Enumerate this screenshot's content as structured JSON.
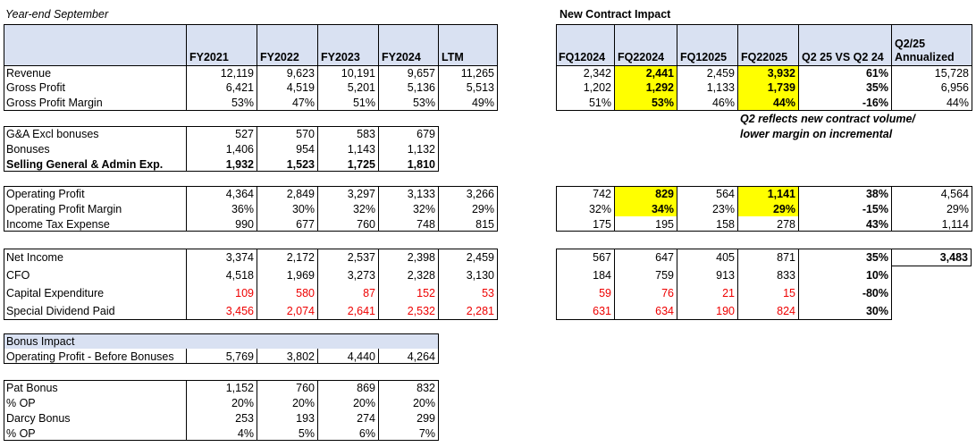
{
  "left": {
    "caption": "Year-end September",
    "header": [
      "FY2021",
      "FY2022",
      "FY2023",
      "FY2024",
      "LTM"
    ],
    "rows": [
      {
        "label": "Revenue",
        "cells": [
          "12,119",
          "9,623",
          "10,191",
          "9,657",
          "11,265"
        ]
      },
      {
        "label": "Gross Profit",
        "cells": [
          "6,421",
          "4,519",
          "5,201",
          "5,136",
          "5,513"
        ]
      },
      {
        "label": "Gross Profit Margin",
        "cells": [
          "53%",
          "47%",
          "51%",
          "53%",
          "49%"
        ]
      },
      {
        "label": "G&A Excl bonuses",
        "cells": [
          "527",
          "570",
          "583",
          "679"
        ]
      },
      {
        "label": "Bonuses",
        "cells": [
          "1,406",
          "954",
          "1,143",
          "1,132"
        ]
      },
      {
        "label": "Selling General & Admin Exp.",
        "cells": [
          "1,932",
          "1,523",
          "1,725",
          "1,810"
        ]
      },
      {
        "label": "Operating Profit",
        "cells": [
          "4,364",
          "2,849",
          "3,297",
          "3,133",
          "3,266"
        ]
      },
      {
        "label": "Operating Profit Margin",
        "cells": [
          "36%",
          "30%",
          "32%",
          "32%",
          "29%"
        ]
      },
      {
        "label": "Income Tax Expense",
        "cells": [
          "990",
          "677",
          "760",
          "748",
          "815"
        ]
      },
      {
        "label": "Net Income",
        "cells": [
          "3,374",
          "2,172",
          "2,537",
          "2,398",
          "2,459"
        ]
      },
      {
        "label": "CFO",
        "cells": [
          "4,518",
          "1,969",
          "3,273",
          "2,328",
          "3,130"
        ]
      },
      {
        "label": "Capital Expenditure",
        "cells": [
          "109",
          "580",
          "87",
          "152",
          "53"
        ]
      },
      {
        "label": "Special Dividend Paid",
        "cells": [
          "3,456",
          "2,074",
          "2,641",
          "2,532",
          "2,281"
        ]
      },
      {
        "label": "Bonus Impact",
        "cells": []
      },
      {
        "label": "Operating Profit - Before Bonuses",
        "cells": [
          "5,769",
          "3,802",
          "4,440",
          "4,264"
        ]
      },
      {
        "label": "Pat Bonus",
        "cells": [
          "1,152",
          "760",
          "869",
          "832"
        ]
      },
      {
        "label": "% OP",
        "cells": [
          "20%",
          "20%",
          "20%",
          "20%"
        ]
      },
      {
        "label": "Darcy Bonus",
        "cells": [
          "253",
          "193",
          "274",
          "299"
        ]
      },
      {
        "label": "% OP",
        "cells": [
          "4%",
          "5%",
          "6%",
          "7%"
        ]
      }
    ]
  },
  "right": {
    "title": "New Contract Impact",
    "header": [
      "FQ12024",
      "FQ22024",
      "FQ12025",
      "FQ22025",
      "Q2 25 VS Q2 24",
      "Q2/25\nAnnualized"
    ],
    "rows": [
      [
        "2,342",
        "2,441",
        "2,459",
        "3,932",
        "61%",
        "15,728"
      ],
      [
        "1,202",
        "1,292",
        "1,133",
        "1,739",
        "35%",
        "6,956"
      ],
      [
        "51%",
        "53%",
        "46%",
        "44%",
        "-16%",
        "44%"
      ],
      [
        "742",
        "829",
        "564",
        "1,141",
        "38%",
        "4,564"
      ],
      [
        "32%",
        "34%",
        "23%",
        "29%",
        "-15%",
        "29%"
      ],
      [
        "175",
        "195",
        "158",
        "278",
        "43%",
        "1,114"
      ],
      [
        "567",
        "647",
        "405",
        "871",
        "35%",
        "3,483"
      ],
      [
        "184",
        "759",
        "913",
        "833",
        "10%"
      ],
      [
        "59",
        "76",
        "21",
        "15",
        "-80%"
      ],
      [
        "631",
        "634",
        "190",
        "824",
        "30%"
      ]
    ],
    "note": [
      "Q2 reflects new contract volume/",
      "lower margin on incremental"
    ]
  }
}
